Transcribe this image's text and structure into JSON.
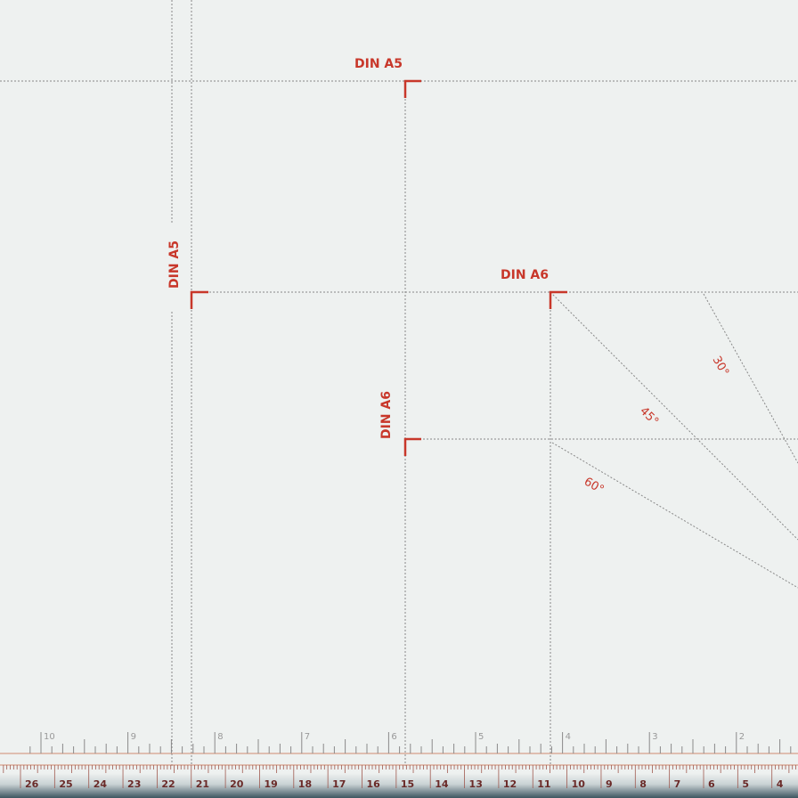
{
  "mat": {
    "accent_color": "#c8372a",
    "background_color": "#eef1f0",
    "labels": {
      "din_a5_horizontal": "DIN A5",
      "din_a5_vertical": "DIN A5",
      "din_a6_horizontal": "DIN A6",
      "din_a6_vertical": "DIN A6",
      "angle_30": "30°",
      "angle_45": "45°",
      "angle_60": "60°"
    },
    "inch_ruler": [
      "10",
      "9",
      "8",
      "7",
      "6",
      "5",
      "4",
      "3",
      "2"
    ],
    "cm_ruler": [
      "26",
      "25",
      "24",
      "23",
      "22",
      "21",
      "20",
      "19",
      "18",
      "17",
      "16",
      "15",
      "14",
      "13",
      "12",
      "11",
      "10",
      "9",
      "8",
      "7",
      "6",
      "5",
      "4"
    ]
  }
}
